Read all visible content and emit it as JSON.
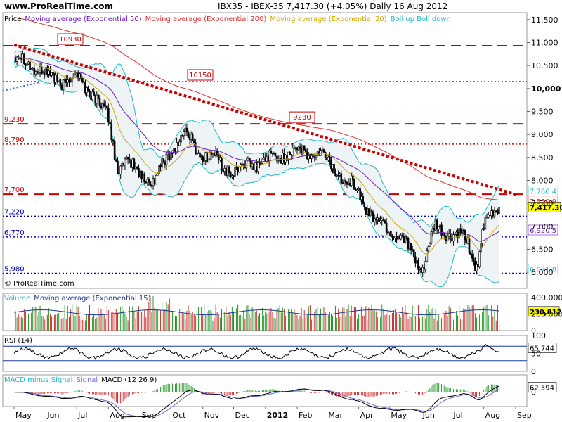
{
  "header": {
    "site": "www.ProRealTime.com",
    "title": "IBX35 - IBEX-35    7,417.30 (+4.05%)    Daily  16 Aug 2012"
  },
  "price_panel": {
    "legend": [
      {
        "text": "Price",
        "color": "#000000"
      },
      {
        "text": "Moving average (Exponential 50)",
        "color": "#6a1bbf"
      },
      {
        "text": "Moving average (Exponential 200)",
        "color": "#e03030"
      },
      {
        "text": "Moving average (Exponential 20)",
        "color": "#d4a800"
      },
      {
        "text": "Boll up Boll down",
        "color": "#21b8c8"
      }
    ],
    "y_ticks": [
      "11,500",
      "11,000",
      "10,500",
      "10,000",
      "9,500",
      "9,000",
      "8,500",
      "8,000",
      "7,500",
      "7,000",
      "6,500",
      "6,000"
    ],
    "h_lines": [
      {
        "label": "10930",
        "value": 10930,
        "color": "#cc0000",
        "style": "dash-long",
        "boxed": true
      },
      {
        "label": "",
        "value": 10150,
        "color": "#cc0000",
        "style": "dotted"
      },
      {
        "label": "9,230",
        "value": 9230,
        "color": "#cc0000",
        "style": "dash-long"
      },
      {
        "label": "8,790",
        "value": 8790,
        "color": "#cc0000",
        "style": "dotted"
      },
      {
        "label": "7,700",
        "value": 7700,
        "color": "#cc0000",
        "style": "dash-long"
      },
      {
        "label": "7,220",
        "value": 7220,
        "color": "#0000cc",
        "style": "dotted"
      },
      {
        "label": "6,770",
        "value": 6770,
        "color": "#0000cc",
        "style": "dotted"
      },
      {
        "label": "5,980",
        "value": 5980,
        "color": "#0000cc",
        "style": "dotted"
      }
    ],
    "annotations": [
      {
        "text": "10930",
        "value": 10930
      },
      {
        "text": "10150",
        "value": 10150
      },
      {
        "text": "9230",
        "value": 9230
      }
    ],
    "right_labels": [
      {
        "text": "7,766.4",
        "value": 7766.4,
        "color": "#21b8c8"
      },
      {
        "text": "7,550.9",
        "value": 7550.9,
        "color": "#e03030"
      },
      {
        "text": "7,417.30",
        "value": 7417.3,
        "color": "#000000",
        "highlight": true
      },
      {
        "text": "6,920.5",
        "value": 6920.5,
        "color": "#6a1bbf"
      },
      {
        "text": "6,071.8",
        "value": 6071.8,
        "color": "#21b8c8"
      }
    ],
    "copyright": "© ProRealTime.com"
  },
  "volume_panel": {
    "legend": [
      {
        "text": "Volume",
        "color": "#21b8c8"
      },
      {
        "text": "Moving average (Exponential 15)",
        "color": "#1a3a8a"
      }
    ],
    "y_ticks": [
      "400,000",
      "200,000",
      "0"
    ],
    "last_label": "230,812"
  },
  "rsi_panel": {
    "legend": "RSI (14)",
    "y_ticks": [
      "100",
      "50",
      "0"
    ],
    "last_label": "65.744"
  },
  "macd_panel": {
    "legend": [
      {
        "text": "MACD minus Signal",
        "color": "#21b8c8"
      },
      {
        "text": "Signal",
        "color": "#6a6ad8"
      },
      {
        "text": "MACD (12 26 9)",
        "color": "#000000"
      }
    ],
    "y_ticks": [
      "0"
    ],
    "last_label": "62.594"
  },
  "x_axis": {
    "months": [
      "May",
      "Jun",
      "Jul",
      "Aug",
      "Sep",
      "Oct",
      "Nov",
      "Dec",
      "2012",
      "Feb",
      "Mar",
      "Apr",
      "May",
      "Jun",
      "Jul",
      "Aug",
      "Sep"
    ]
  },
  "chart_data": {
    "type": "candlestick",
    "title": "IBX35 - IBEX-35 7,417.30 (+4.05%) Daily 16 Aug 2012",
    "y_range": [
      5650,
      11650
    ],
    "close_series": {
      "x": [
        "2011-05-01",
        "2011-05-15",
        "2011-06-01",
        "2011-06-15",
        "2011-07-01",
        "2011-07-15",
        "2011-08-01",
        "2011-08-10",
        "2011-08-20",
        "2011-09-01",
        "2011-09-15",
        "2011-10-01",
        "2011-10-15",
        "2011-11-01",
        "2011-11-15",
        "2011-12-01",
        "2011-12-15",
        "2012-01-01",
        "2012-01-15",
        "2012-02-01",
        "2012-02-15",
        "2012-03-01",
        "2012-03-15",
        "2012-04-01",
        "2012-04-15",
        "2012-05-01",
        "2012-05-15",
        "2012-06-01",
        "2012-06-15",
        "2012-07-01",
        "2012-07-15",
        "2012-07-25",
        "2012-08-01",
        "2012-08-16"
      ],
      "values": [
        10700,
        10550,
        10300,
        10150,
        10250,
        9950,
        9350,
        8300,
        8350,
        8150,
        7950,
        8700,
        9000,
        8550,
        8450,
        8150,
        8350,
        8400,
        8550,
        8650,
        8600,
        8450,
        8100,
        7750,
        7150,
        6950,
        6700,
        6050,
        6950,
        6800,
        6700,
        6150,
        6950,
        7417
      ]
    },
    "trend_line": {
      "from": {
        "x": "2011-05-01",
        "y": 10950
      },
      "to": {
        "x": "2012-08-28",
        "y": 7720
      },
      "color": "#cc0000",
      "style": "dotted"
    },
    "last_values": {
      "price": 7417.3,
      "bollinger_up": 7766.4,
      "ema200": 7550.9,
      "ema50": 6920.5,
      "bollinger_down": 6071.8,
      "volume": 230812,
      "rsi": 65.744,
      "macd": 62.594
    }
  }
}
